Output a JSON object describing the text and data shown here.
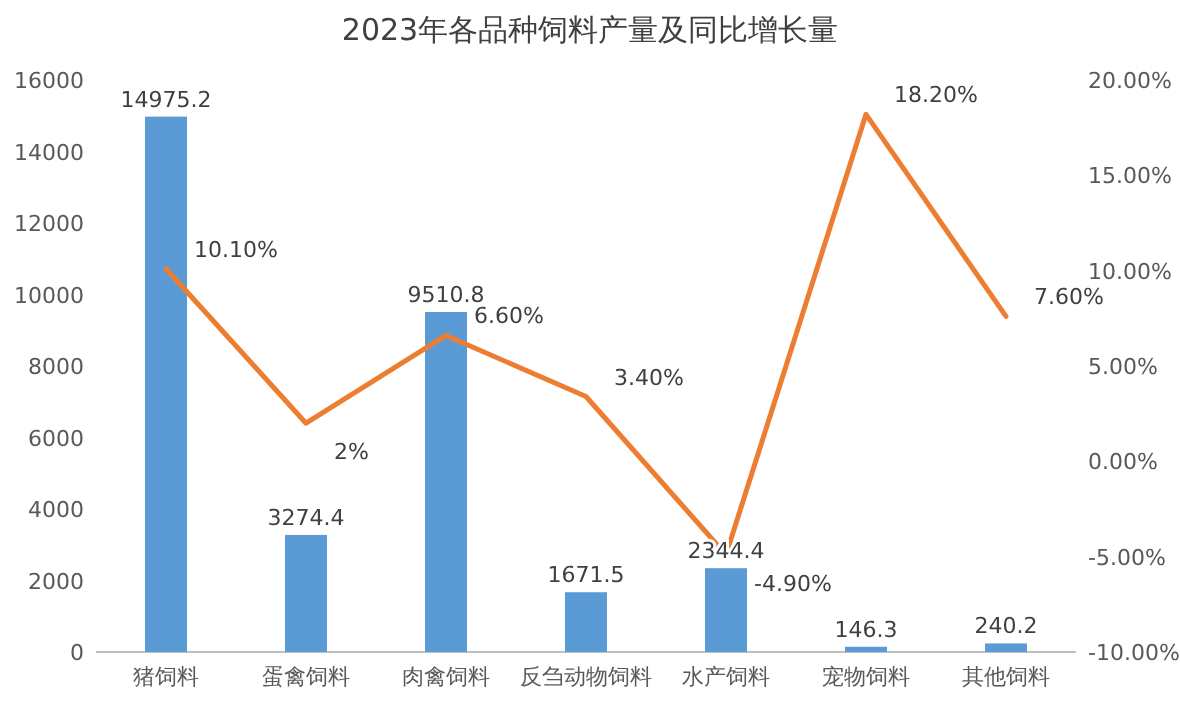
{
  "chart_data": {
    "type": "bar",
    "title": "2023年各品种饲料产量及同比增长量",
    "categories": [
      "猪饲料",
      "蛋禽饲料",
      "肉禽饲料",
      "反刍动物饲料",
      "水产饲料",
      "宠物饲料",
      "其他饲料"
    ],
    "series": [
      {
        "color": "#5b9bd5",
        "values": [
          14975.2,
          3274.4,
          9510.8,
          1671.5,
          2344.4,
          146.3,
          240.2
        ],
        "value_labels": [
          "14975.2",
          "3274.4",
          "9510.8",
          "1671.5",
          "2344.4",
          "146.3",
          "240.2"
        ]
      },
      {
        "type": "line",
        "axis": "y2",
        "color": "#ed7d31",
        "values": [
          10.1,
          2,
          6.6,
          3.4,
          -4.9,
          18.2,
          7.6
        ],
        "value_labels": [
          "10.10%",
          "2%",
          "6.60%",
          "3.40%",
          "-4.90%",
          "18.20%",
          "7.60%"
        ]
      }
    ],
    "ylim": [
      0,
      16000
    ],
    "yticks": [
      0,
      2000,
      4000,
      6000,
      8000,
      10000,
      12000,
      14000,
      16000
    ],
    "y2lim": [
      -10,
      20
    ],
    "y2ticks": [
      {
        "value": -10,
        "label": "-10.00%"
      },
      {
        "value": -5,
        "label": "-5.00%"
      },
      {
        "value": 0,
        "label": "0.00%"
      },
      {
        "value": 5,
        "label": "5.00%"
      },
      {
        "value": 10,
        "label": "10.00%"
      },
      {
        "value": 15,
        "label": "15.00%"
      },
      {
        "value": 20,
        "label": "20.00%"
      }
    ],
    "grid": false
  }
}
